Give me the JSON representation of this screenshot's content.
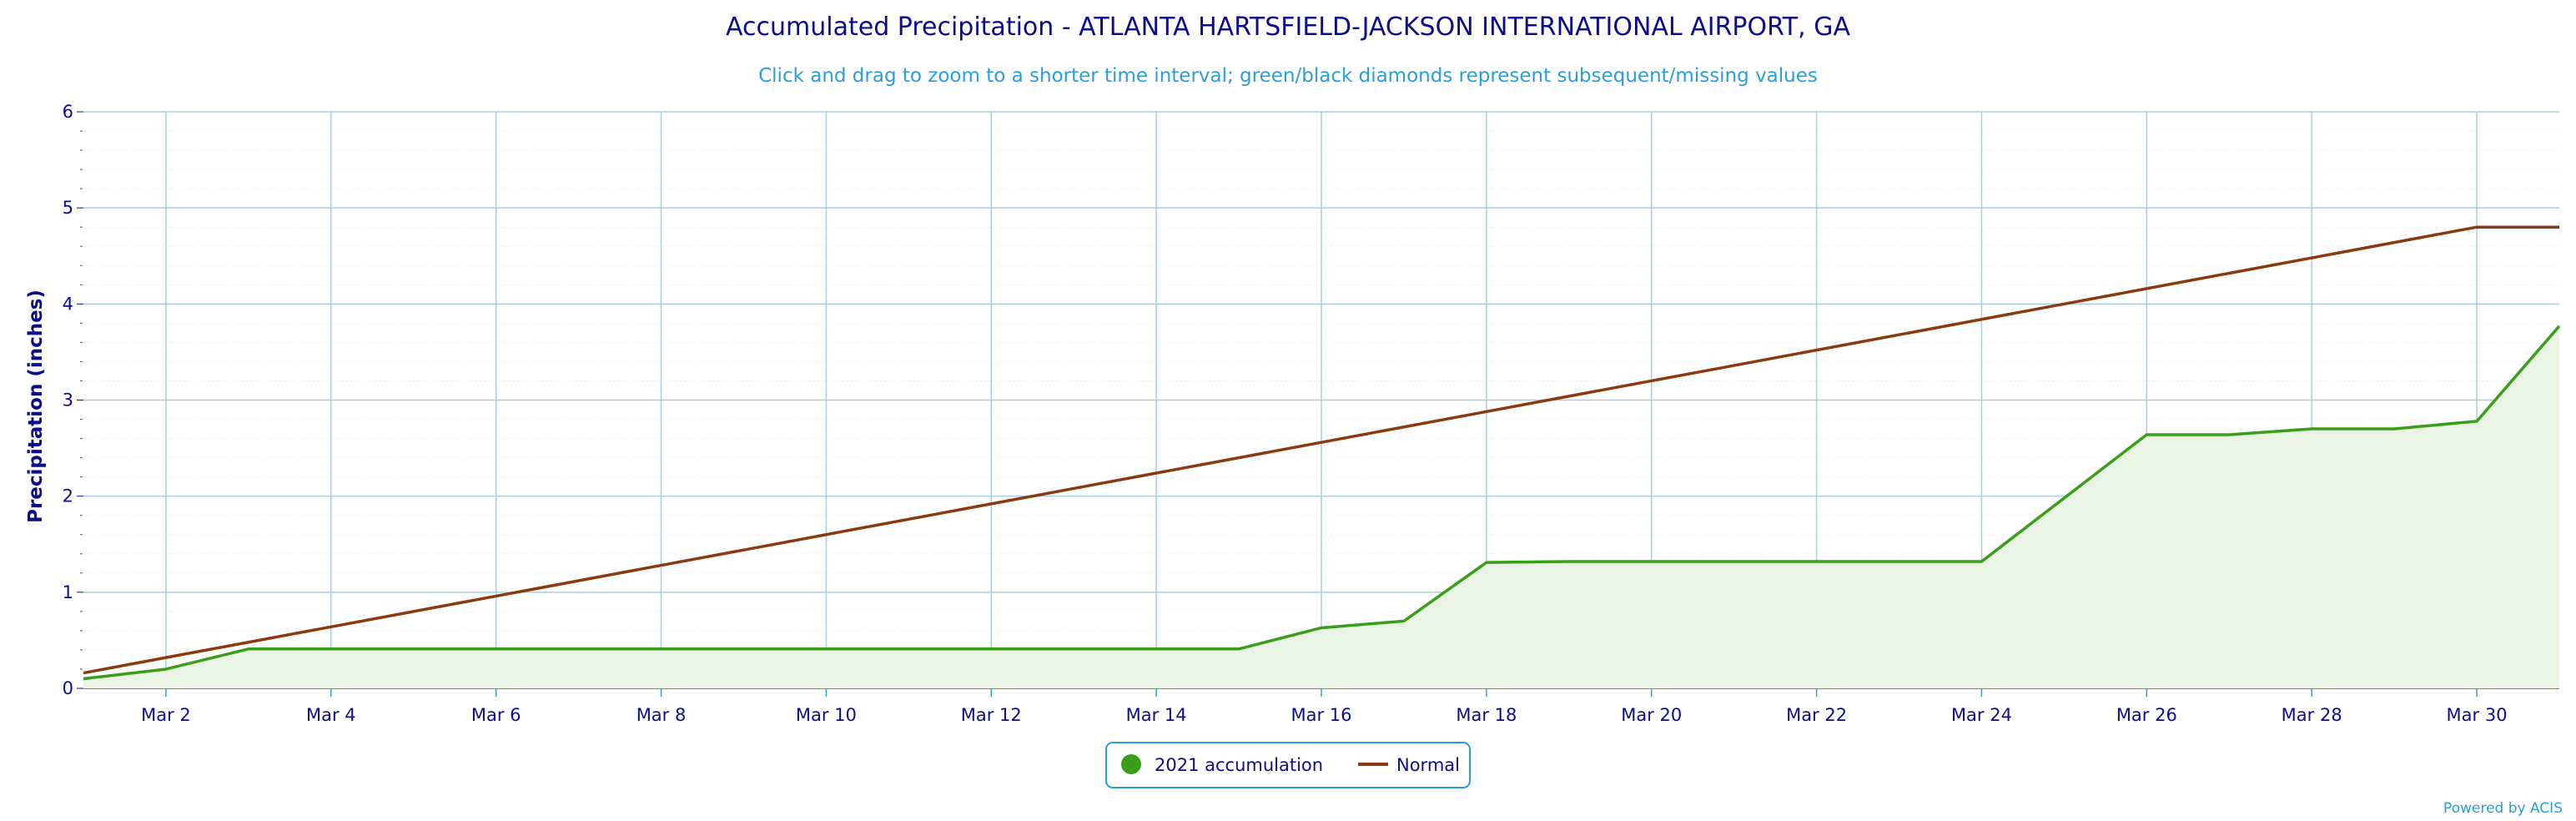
{
  "colors": {
    "title": "#0d0d8c",
    "subtitle": "#2a9fd6",
    "grid": "#a8cde6",
    "accumulation": "#3a9e1a",
    "accumulation_fill": "#eaf4e4",
    "normal": "#8b3a0f",
    "legend_border": "#2a9fd6"
  },
  "chart_data": {
    "type": "area",
    "title": "Accumulated Precipitation - ATLANTA HARTSFIELD-JACKSON INTERNATIONAL AIRPORT, GA",
    "subtitle": "Click and drag to zoom to a shorter time interval; green/black diamonds represent subsequent/missing values",
    "ylabel": "Precipitation (inches)",
    "xlabel": "",
    "ylim": [
      0,
      6
    ],
    "yticks": [
      "0",
      "1",
      "2",
      "3",
      "4",
      "5",
      "6"
    ],
    "xticks": [
      {
        "day": 2,
        "label": "Mar 2"
      },
      {
        "day": 4,
        "label": "Mar 4"
      },
      {
        "day": 6,
        "label": "Mar 6"
      },
      {
        "day": 8,
        "label": "Mar 8"
      },
      {
        "day": 10,
        "label": "Mar 10"
      },
      {
        "day": 12,
        "label": "Mar 12"
      },
      {
        "day": 14,
        "label": "Mar 14"
      },
      {
        "day": 16,
        "label": "Mar 16"
      },
      {
        "day": 18,
        "label": "Mar 18"
      },
      {
        "day": 20,
        "label": "Mar 20"
      },
      {
        "day": 22,
        "label": "Mar 22"
      },
      {
        "day": 24,
        "label": "Mar 24"
      },
      {
        "day": 26,
        "label": "Mar 26"
      },
      {
        "day": 28,
        "label": "Mar 28"
      },
      {
        "day": 30,
        "label": "Mar 30"
      }
    ],
    "xlim": [
      1,
      31
    ],
    "grid": true,
    "legend_position": "bottom-center",
    "series": [
      {
        "name": "2021 accumulation",
        "style": "area",
        "color": "#3a9e1a",
        "x": [
          1,
          2,
          3,
          4,
          5,
          6,
          7,
          8,
          9,
          10,
          11,
          12,
          13,
          14,
          15,
          16,
          17,
          18,
          19,
          20,
          21,
          22,
          23,
          24,
          25,
          26,
          27,
          28,
          29,
          30,
          31
        ],
        "values": [
          0.1,
          0.2,
          0.41,
          0.41,
          0.41,
          0.41,
          0.41,
          0.41,
          0.41,
          0.41,
          0.41,
          0.41,
          0.41,
          0.41,
          0.41,
          0.63,
          0.7,
          1.31,
          1.32,
          1.32,
          1.32,
          1.32,
          1.32,
          1.32,
          1.98,
          2.64,
          2.64,
          2.7,
          2.7,
          2.78,
          3.77
        ]
      },
      {
        "name": "Normal",
        "style": "line",
        "color": "#8b3a0f",
        "x": [
          1,
          2,
          3,
          4,
          5,
          6,
          7,
          8,
          9,
          10,
          11,
          12,
          13,
          14,
          15,
          16,
          17,
          18,
          19,
          20,
          21,
          22,
          23,
          24,
          25,
          26,
          27,
          28,
          29,
          30,
          31
        ],
        "values": [
          0.16,
          0.32,
          0.48,
          0.64,
          0.8,
          0.96,
          1.12,
          1.28,
          1.44,
          1.6,
          1.76,
          1.92,
          2.08,
          2.24,
          2.4,
          2.56,
          2.72,
          2.88,
          3.04,
          3.2,
          3.36,
          3.52,
          3.68,
          3.84,
          4.0,
          4.16,
          4.32,
          4.48,
          4.64,
          4.8,
          4.8
        ]
      }
    ]
  },
  "legend": {
    "accumulation_label": "2021 accumulation",
    "normal_label": "Normal"
  },
  "credit": "Powered by ACIS"
}
